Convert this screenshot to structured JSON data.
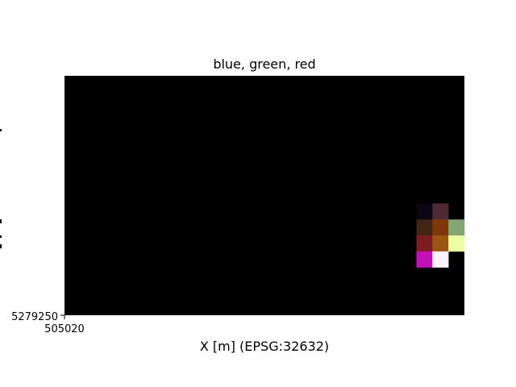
{
  "chart_data": {
    "type": "heatmap",
    "title": "blue, green, red",
    "xlabel": "X [m] (EPSG:32632)",
    "ylabel": "",
    "x_ticks": [
      "505020"
    ],
    "y_ticks": [
      "5279250"
    ],
    "background_color": "#000000",
    "grid": false,
    "legend": "none",
    "n_cols": 25,
    "n_rows": 15,
    "cells": [
      {
        "col": 22,
        "row": 8,
        "color": "#0b0514"
      },
      {
        "col": 23,
        "row": 8,
        "color": "#4d2a35"
      },
      {
        "col": 22,
        "row": 9,
        "color": "#412414"
      },
      {
        "col": 23,
        "row": 9,
        "color": "#7f3709"
      },
      {
        "col": 24,
        "row": 9,
        "color": "#83a674"
      },
      {
        "col": 22,
        "row": 10,
        "color": "#7c1c20"
      },
      {
        "col": 23,
        "row": 10,
        "color": "#9a5512"
      },
      {
        "col": 24,
        "row": 10,
        "color": "#edfda4"
      },
      {
        "col": 22,
        "row": 11,
        "color": "#c411b7"
      },
      {
        "col": 23,
        "row": 11,
        "color": "#fbf2fb"
      }
    ]
  }
}
